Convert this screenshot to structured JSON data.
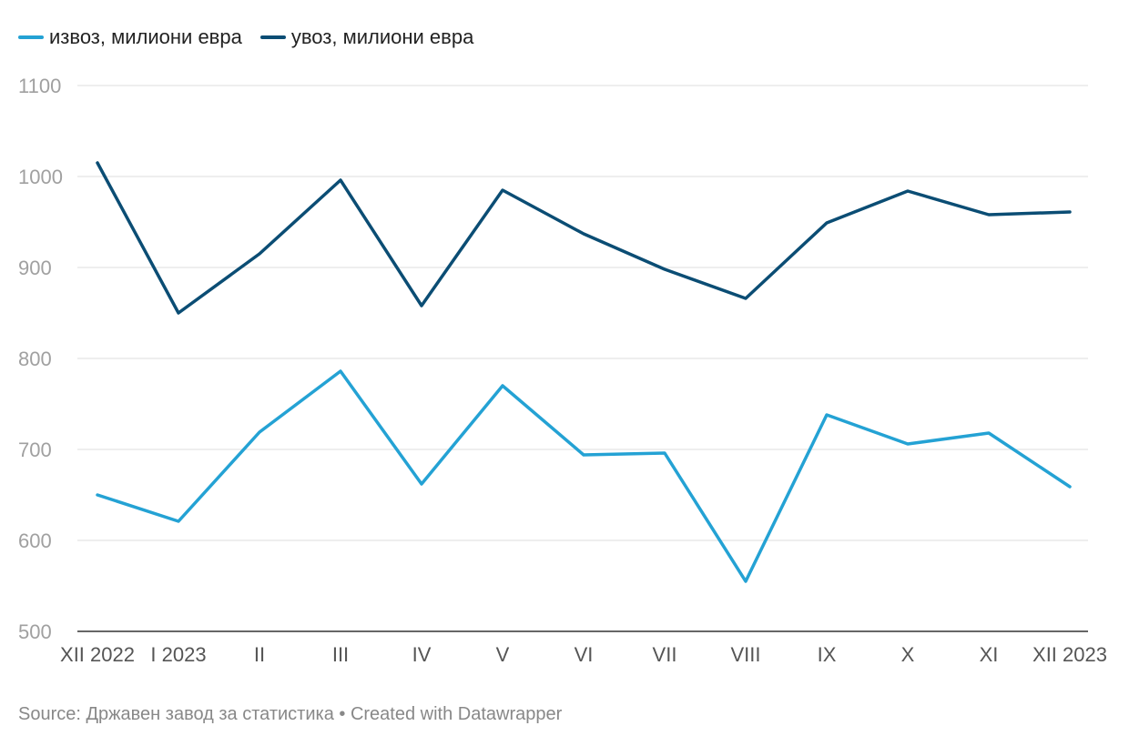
{
  "chart_data": {
    "type": "line",
    "categories": [
      "XII 2022",
      "I 2023",
      "II",
      "III",
      "IV",
      "V",
      "VI",
      "VII",
      "VIII",
      "IX",
      "X",
      "XI",
      "XII 2023"
    ],
    "series": [
      {
        "name": "извоз, милиони евра",
        "color": "#24a2d4",
        "values": [
          650,
          621,
          719,
          786,
          662,
          770,
          694,
          696,
          555,
          738,
          706,
          718,
          659
        ]
      },
      {
        "name": "увоз, милиони евра",
        "color": "#0b4d74",
        "values": [
          1015,
          850,
          915,
          996,
          858,
          985,
          937,
          898,
          866,
          949,
          984,
          958,
          961
        ]
      }
    ],
    "yticks": [
      500,
      600,
      700,
      800,
      900,
      1000,
      1100
    ],
    "ylim": [
      500,
      1100
    ],
    "grid": true,
    "legend_position": "top-left"
  },
  "footer": "Source: Државен завод за статистика • Created with Datawrapper"
}
